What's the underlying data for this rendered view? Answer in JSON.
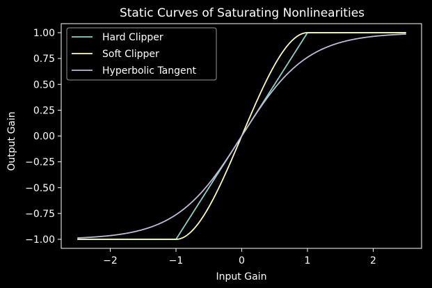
{
  "chart_data": {
    "type": "line",
    "title": "Static Curves of Saturating Nonlinearities",
    "xlabel": "Input Gain",
    "ylabel": "Output Gain",
    "xlim": [
      -2.5,
      2.5
    ],
    "ylim": [
      -1,
      1
    ],
    "xticks": [
      -2,
      -1,
      0,
      1,
      2
    ],
    "xtick_labels": [
      "−2",
      "−1",
      "0",
      "1",
      "2"
    ],
    "yticks": [
      -1.0,
      -0.75,
      -0.5,
      -0.25,
      0.0,
      0.25,
      0.5,
      0.75,
      1.0
    ],
    "ytick_labels": [
      "−1.00",
      "−0.75",
      "−0.50",
      "−0.25",
      "0.00",
      "0.25",
      "0.50",
      "0.75",
      "1.00"
    ],
    "grid": false,
    "legend_position": "top-left",
    "x": [
      -2.5,
      -2.0,
      -1.5,
      -1.0,
      -0.75,
      -0.5,
      -0.25,
      0.0,
      0.25,
      0.5,
      0.75,
      1.0,
      1.5,
      2.0,
      2.5
    ],
    "series": [
      {
        "name": "Hard Clipper",
        "color": "#8dd3c7",
        "values": [
          -1.0,
          -1.0,
          -1.0,
          -1.0,
          -0.75,
          -0.5,
          -0.25,
          0.0,
          0.25,
          0.5,
          0.75,
          1.0,
          1.0,
          1.0,
          1.0
        ]
      },
      {
        "name": "Soft Clipper",
        "color": "#feffb3",
        "values": [
          -1.0,
          -1.0,
          -1.0,
          -1.0,
          -0.945,
          -0.688,
          -0.359,
          0.0,
          0.359,
          0.688,
          0.945,
          1.0,
          1.0,
          1.0,
          1.0
        ]
      },
      {
        "name": "Hyperbolic Tangent",
        "color": "#bfbbd9",
        "values": [
          -0.987,
          -0.964,
          -0.905,
          -0.762,
          -0.635,
          -0.462,
          -0.245,
          0.0,
          0.245,
          0.462,
          0.635,
          0.762,
          0.905,
          0.964,
          0.987
        ]
      }
    ]
  }
}
